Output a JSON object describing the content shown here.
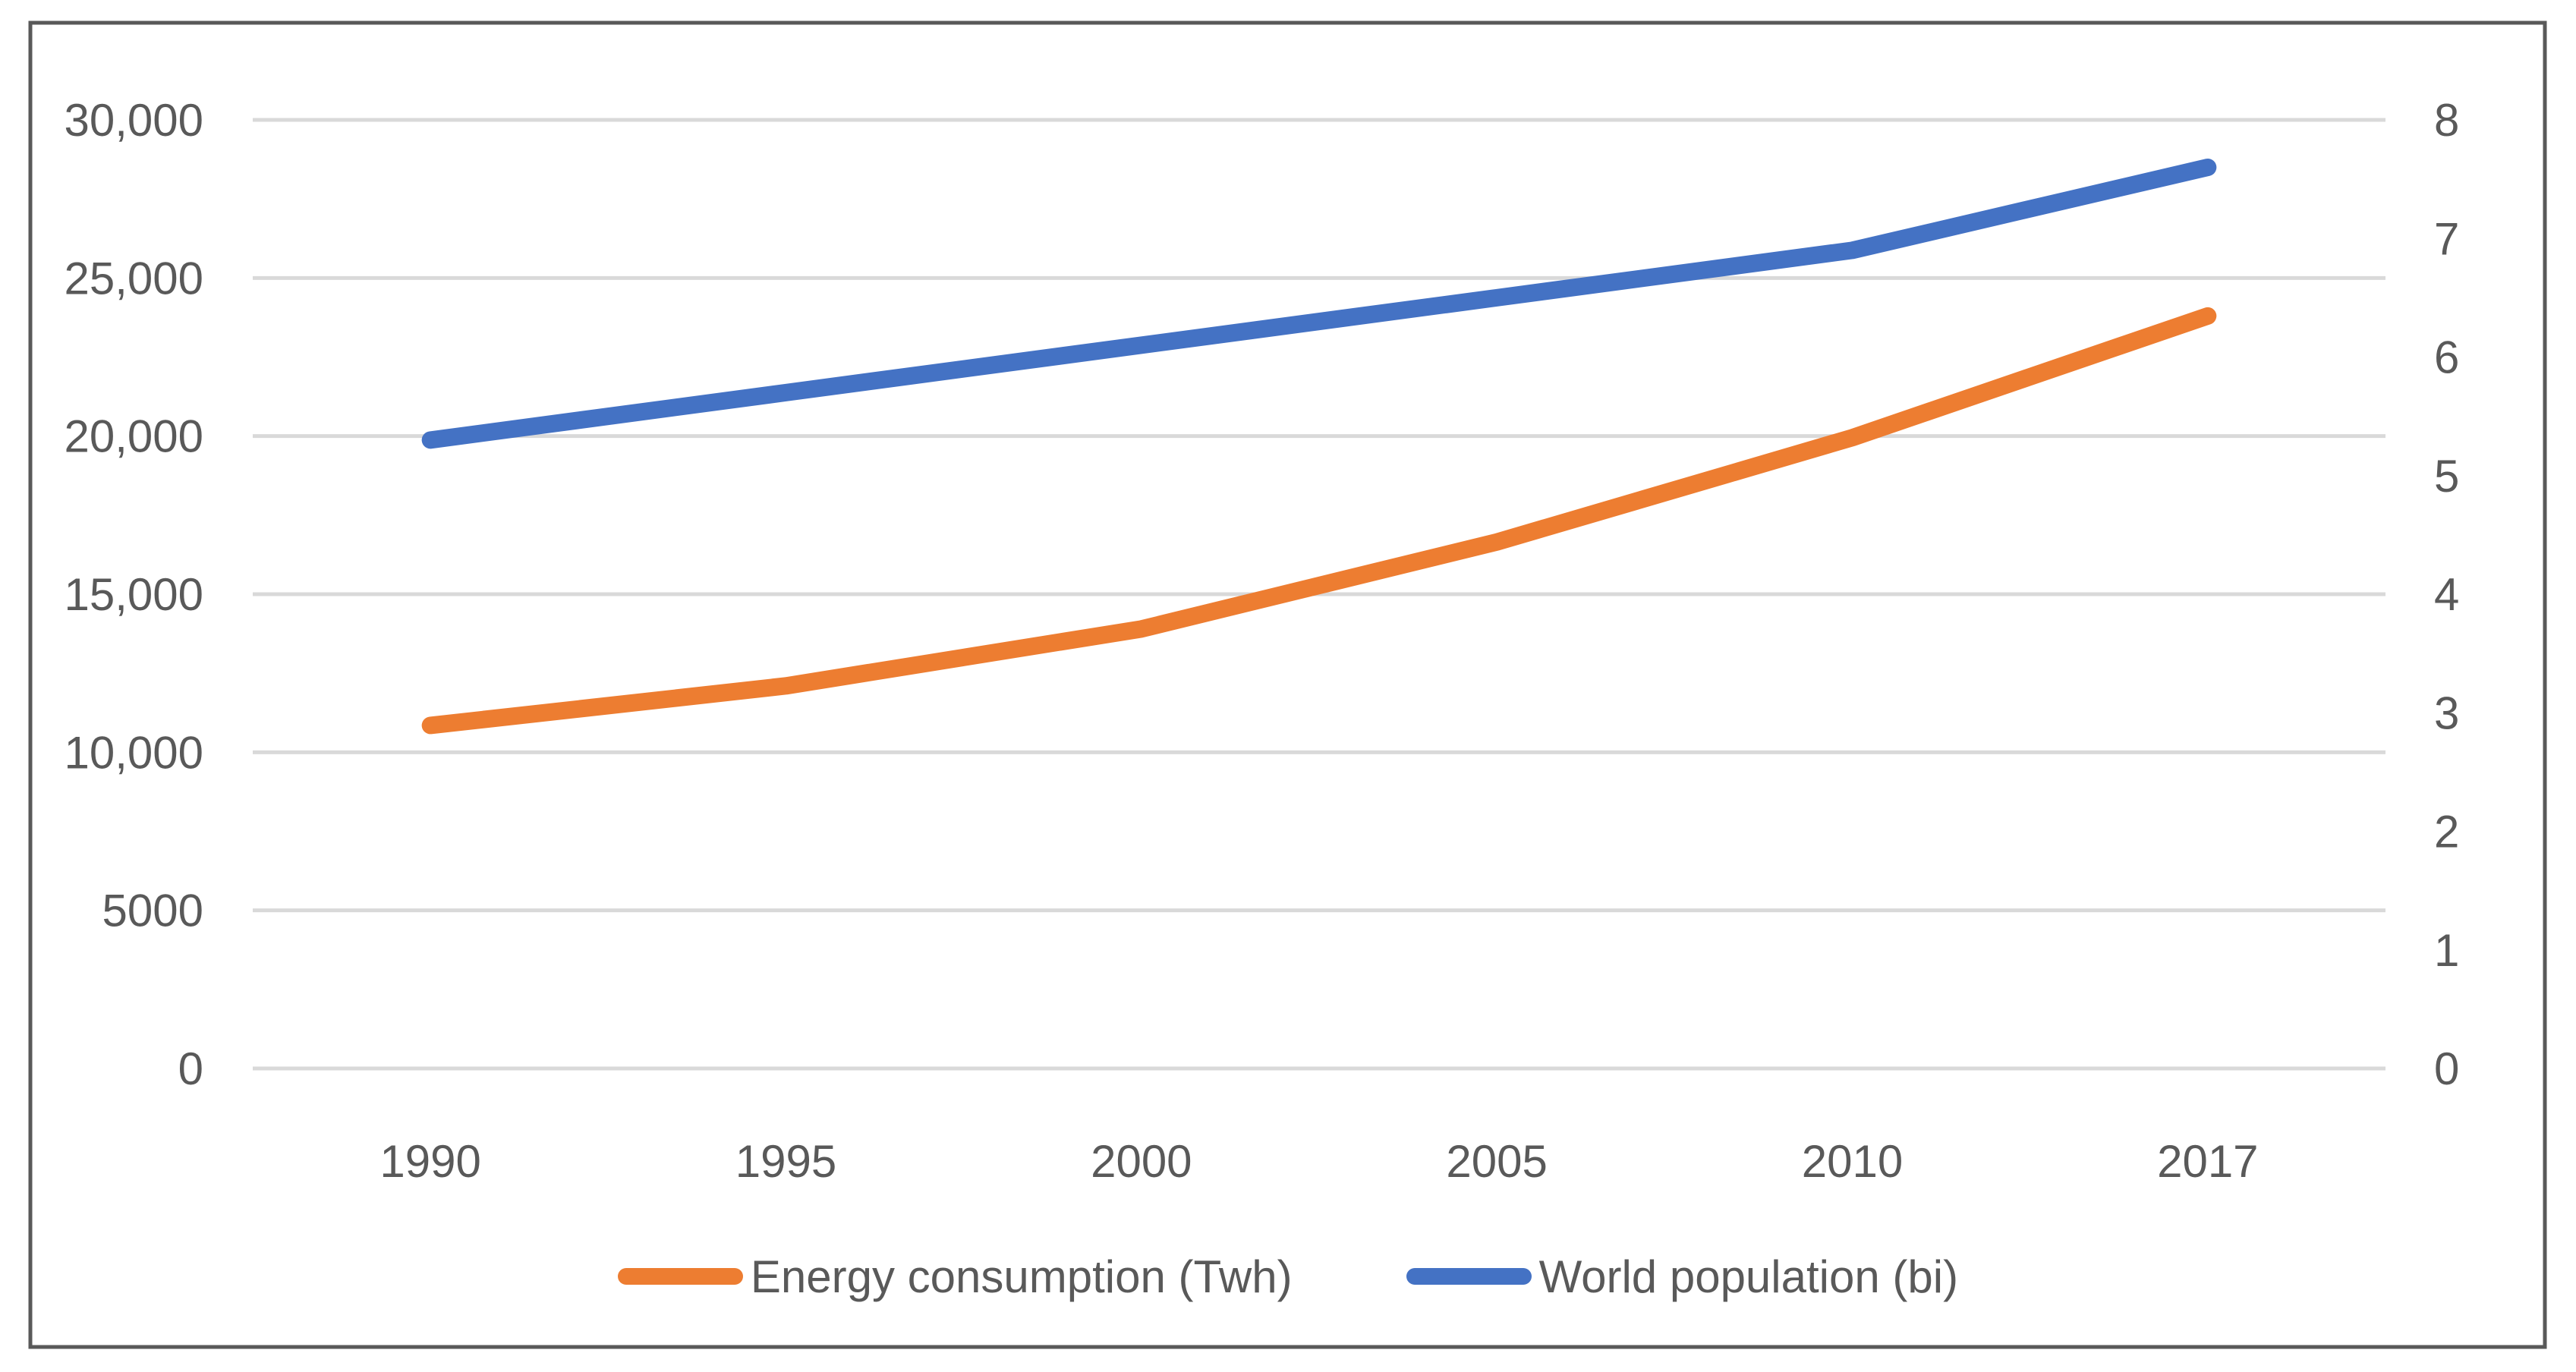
{
  "chart_data": {
    "type": "line",
    "title": "",
    "categories": [
      "1990",
      "1995",
      "2000",
      "2005",
      "2010",
      "2017"
    ],
    "series": [
      {
        "name": "Energy consumption (Twh)",
        "axis": "left",
        "color": "#ED7D31",
        "values": [
          10850,
          12100,
          13900,
          16650,
          19950,
          23800
        ]
      },
      {
        "name": "World population (bi)",
        "axis": "right",
        "color": "#4472C4",
        "values": [
          5.3,
          5.7,
          6.1,
          6.5,
          6.9,
          7.6
        ]
      }
    ],
    "y_axis_left": {
      "min": 0,
      "max": 30000,
      "step": 5000,
      "tick_labels": [
        "0",
        "5000",
        "10,000",
        "15,000",
        "20,000",
        "25,000",
        "30,000"
      ]
    },
    "y_axis_right": {
      "min": 0,
      "max": 8,
      "step": 1,
      "tick_labels": [
        "0",
        "1",
        "2",
        "3",
        "4",
        "5",
        "6",
        "7",
        "8"
      ]
    },
    "xlabel": "",
    "ylabel": "",
    "grid": true,
    "legend_position": "bottom",
    "colors": {
      "gridline": "#D9D9D9",
      "axis_text": "#595959",
      "border": "#595959",
      "background": "#FFFFFF"
    }
  },
  "legend": {
    "items": [
      {
        "label": "Energy consumption (Twh)",
        "color": "#ED7D31"
      },
      {
        "label": "World population (bi)",
        "color": "#4472C4"
      }
    ]
  }
}
